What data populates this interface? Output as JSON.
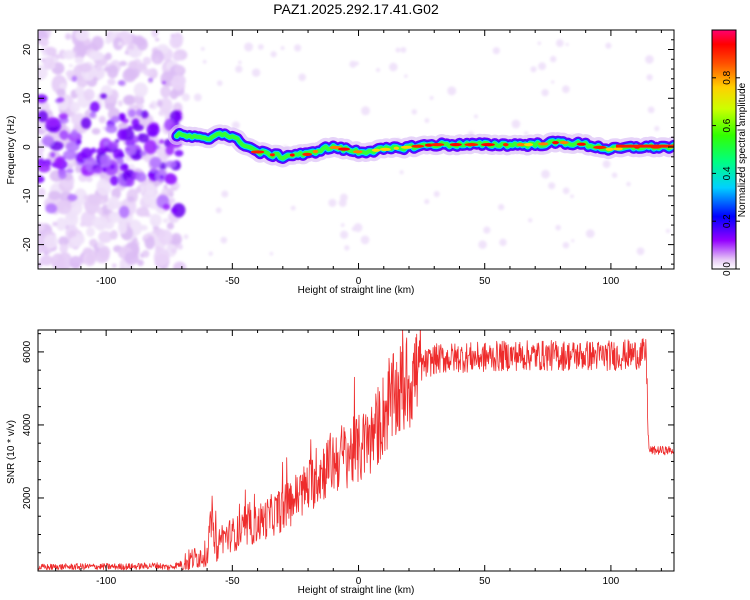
{
  "title": "PAZ1.2025.292.17.41.G02",
  "chart_data": [
    {
      "type": "heatmap",
      "xlabel": "Height of straight line (km)",
      "ylabel": "Frequency (Hz)",
      "xlim": [
        -127,
        125
      ],
      "ylim": [
        -25,
        24
      ],
      "xticks": [
        -100,
        -50,
        0,
        50,
        100
      ],
      "yticks": [
        -20,
        -10,
        0,
        10,
        20
      ],
      "colorbar": {
        "label": "Normalized spectral amplitude",
        "range": [
          0,
          1
        ],
        "ticks": [
          0.0,
          0.2,
          0.4,
          0.6,
          0.8
        ]
      },
      "ridge": {
        "x": [
          -72,
          -65,
          -60,
          -55,
          -50,
          -45,
          -40,
          -35,
          -30,
          -25,
          -20,
          -15,
          -10,
          -5,
          0,
          10,
          20,
          30,
          40,
          50,
          60,
          70,
          80,
          90,
          100,
          110,
          125
        ],
        "y": [
          2.5,
          2,
          1.5,
          3,
          2,
          0.5,
          -1,
          -1.5,
          -2,
          -1.5,
          -1.5,
          -0.5,
          0,
          -0.5,
          -1,
          -0.5,
          0,
          0.5,
          0.5,
          0.5,
          0.5,
          0.5,
          1,
          0.5,
          -0.5,
          0,
          0
        ]
      }
    },
    {
      "type": "line",
      "xlabel": "Height of straight line (km)",
      "ylabel": "SNR (10 * v/v)",
      "xlim": [
        -127,
        125
      ],
      "ylim": [
        0,
        6600
      ],
      "xticks": [
        -100,
        -50,
        0,
        50,
        100
      ],
      "yticks": [
        2000,
        4000,
        6000
      ],
      "color": "#ee2c2c",
      "series": [
        {
          "x": [
            -127,
            -110,
            -90,
            -80,
            -75,
            -70,
            -65,
            -60,
            -58,
            -56,
            -55,
            -50,
            -45,
            -40,
            -35,
            -30,
            -25,
            -20,
            -15,
            -10,
            -5,
            0,
            5,
            10,
            15,
            20,
            25,
            30,
            40,
            50,
            60,
            70,
            80,
            90,
            100,
            114,
            115,
            116,
            120,
            125
          ],
          "y": [
            100,
            120,
            120,
            150,
            100,
            200,
            350,
            500,
            1500,
            400,
            900,
            1000,
            1100,
            1300,
            1500,
            1700,
            2000,
            2300,
            2700,
            3000,
            3200,
            3300,
            3600,
            4300,
            4800,
            5200,
            5600,
            5800,
            5850,
            5850,
            5900,
            5900,
            5900,
            5900,
            5900,
            5950,
            3300,
            3300,
            3300,
            3300
          ]
        }
      ]
    }
  ]
}
